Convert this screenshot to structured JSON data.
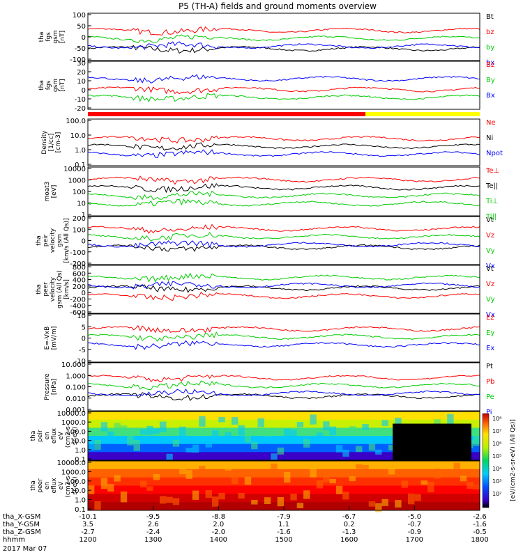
{
  "chart_data": {
    "type": "line",
    "title": "P5 (TH-A) fields and ground moments overview",
    "x_ticks_hhmm": [
      "1200",
      "1300",
      "1400",
      "1500",
      "1600",
      "1700",
      "1800"
    ],
    "x_range_minutes": [
      720,
      1080
    ],
    "orbit_rows": [
      {
        "label": "tha_X-GSM",
        "values": [
          "-10.1",
          "-9.5",
          "-8.8",
          "-7.9",
          "-6.7",
          "-5.0",
          "-2.6"
        ]
      },
      {
        "label": "tha_Y-GSM",
        "values": [
          "3.5",
          "2.6",
          "2.0",
          "1.1",
          "0.2",
          "-0.7",
          "-1.6"
        ]
      },
      {
        "label": "tha_Z-GSM",
        "values": [
          "-2.7",
          "-2.4",
          "-2.0",
          "-1.6",
          "-1.3",
          "-0.9",
          "-0.5"
        ]
      },
      {
        "label": "hhmm",
        "values": []
      }
    ],
    "date_label": "2017 Mar 07",
    "panels": [
      {
        "id": "fgs_gsm",
        "ylabel": [
          "tha",
          "fgs",
          "gsm",
          "[nT]"
        ],
        "yticks": [
          "100",
          "50",
          "0",
          "-50",
          "-100"
        ],
        "ylim": [
          -100,
          100
        ],
        "log": false,
        "legend": [
          {
            "t": "Bt",
            "c": "#000000"
          },
          {
            "t": "bz",
            "c": "#ff0000"
          },
          {
            "t": "by",
            "c": "#00cc00"
          },
          {
            "t": "bx",
            "c": "#0000ff"
          }
        ]
      },
      {
        "id": "fgs_dsl",
        "ylabel": [
          "tha",
          "fgs",
          "gsm",
          "[nT]"
        ],
        "yticks": [
          "30",
          "20",
          "10",
          "0",
          "-10",
          "-20"
        ],
        "ylim": [
          -25,
          30
        ],
        "log": false,
        "legend": [
          {
            "t": "Bz",
            "c": "#ff0000"
          },
          {
            "t": "By",
            "c": "#00cc00"
          },
          {
            "t": "Bx",
            "c": "#0000ff"
          }
        ]
      },
      {
        "id": "density",
        "ylabel": [
          "Density",
          "[1/cc]",
          "[cm-3]"
        ],
        "yticks": [
          "100.0",
          "10.0",
          "1.0",
          "0.1"
        ],
        "ylim": [
          0.05,
          200
        ],
        "log": true,
        "legend": [
          {
            "t": "Ne",
            "c": "#ff0000"
          },
          {
            "t": "Ni",
            "c": "#000000"
          },
          {
            "t": "Npot",
            "c": "#0000ff"
          }
        ]
      },
      {
        "id": "temp",
        "ylabel": [
          "moat3",
          "[eV]"
        ],
        "yticks": [
          "10000",
          "1000",
          "100",
          "10",
          "1"
        ],
        "ylim": [
          0.8,
          12000
        ],
        "log": true,
        "legend": [
          {
            "t": "Te⊥",
            "c": "#ff0000"
          },
          {
            "t": "Te||",
            "c": "#000000"
          },
          {
            "t": "Ti⊥",
            "c": "#00cc00"
          },
          {
            "t": "Ti||",
            "c": "#00cc00"
          }
        ]
      },
      {
        "id": "vel_gsm",
        "ylabel": [
          "tha",
          "peir",
          "velocity",
          "gsm",
          "[km/s (All Qs)]"
        ],
        "yticks": [
          "200",
          "100",
          "0",
          "-100",
          "-200"
        ],
        "ylim": [
          -220,
          220
        ],
        "log": false,
        "legend": [
          {
            "t": "Vt",
            "c": "#000000"
          },
          {
            "t": "Vz",
            "c": "#ff0000"
          },
          {
            "t": "Vy",
            "c": "#00cc00"
          },
          {
            "t": "Vx",
            "c": "#0000ff"
          }
        ]
      },
      {
        "id": "vel_gsm2",
        "ylabel": [
          "tha",
          "peer",
          "velocity",
          "gsm (All Qs)",
          "[km/s]"
        ],
        "yticks": [
          "800",
          "600",
          "400",
          "200",
          "0",
          "-200",
          "-400",
          "-600"
        ],
        "ylim": [
          -650,
          850
        ],
        "log": false,
        "legend": [
          {
            "t": "Vt",
            "c": "#000000"
          },
          {
            "t": "Vz",
            "c": "#ff0000"
          },
          {
            "t": "Vy",
            "c": "#00cc00"
          },
          {
            "t": "Vx",
            "c": "#0000ff"
          }
        ]
      },
      {
        "id": "efield",
        "ylabel": [
          "E=-VxB",
          "[mV/m]"
        ],
        "yticks": [
          "10",
          "5",
          "0",
          "-5",
          "-10"
        ],
        "ylim": [
          -11,
          11
        ],
        "log": false,
        "legend": [
          {
            "t": "Ez",
            "c": "#ff0000"
          },
          {
            "t": "Ey",
            "c": "#00cc00"
          },
          {
            "t": "Ex",
            "c": "#0000ff"
          }
        ]
      },
      {
        "id": "pressure",
        "ylabel": [
          "Pressure",
          "[nPa]"
        ],
        "yticks": [
          "10.000",
          "1.000",
          "0.100",
          "0.010",
          "0.001"
        ],
        "ylim": [
          0.001,
          10
        ],
        "log": true,
        "legend": [
          {
            "t": "Pt",
            "c": "#000000"
          },
          {
            "t": "Pb",
            "c": "#ff0000"
          },
          {
            "t": "Pe",
            "c": "#00cc00"
          },
          {
            "t": "Pi",
            "c": "#0000ff"
          }
        ]
      },
      {
        "id": "ion_spec",
        "ylabel": [
          "tha",
          "peir",
          "en",
          "eflux",
          "eV",
          "(cm2-s-",
          "sr-eV)"
        ],
        "yticks": [
          "10000.0",
          "1000.0",
          "100.0",
          "10.0",
          "1.0",
          "0.1"
        ],
        "ylim": [
          0.05,
          30000
        ],
        "log": true,
        "legend": []
      },
      {
        "id": "ele_spec",
        "ylabel": [
          "tha",
          "peer",
          "en",
          "eflux",
          "eV",
          "(cm2-s-",
          "sr-eV)"
        ],
        "yticks": [
          "10000.0",
          "1000.0",
          "100.0",
          "10.0",
          "1.0",
          "0.1"
        ],
        "ylim": [
          0.05,
          30000
        ],
        "log": true,
        "legend": []
      }
    ],
    "colorbar_ticks": [
      "10⁸",
      "10⁷",
      "10⁶",
      "10⁵",
      "10⁴",
      "10³",
      "10²"
    ],
    "colorbar_label": "[eV/(cm2-s-sr-eV) (All Qs)]"
  }
}
